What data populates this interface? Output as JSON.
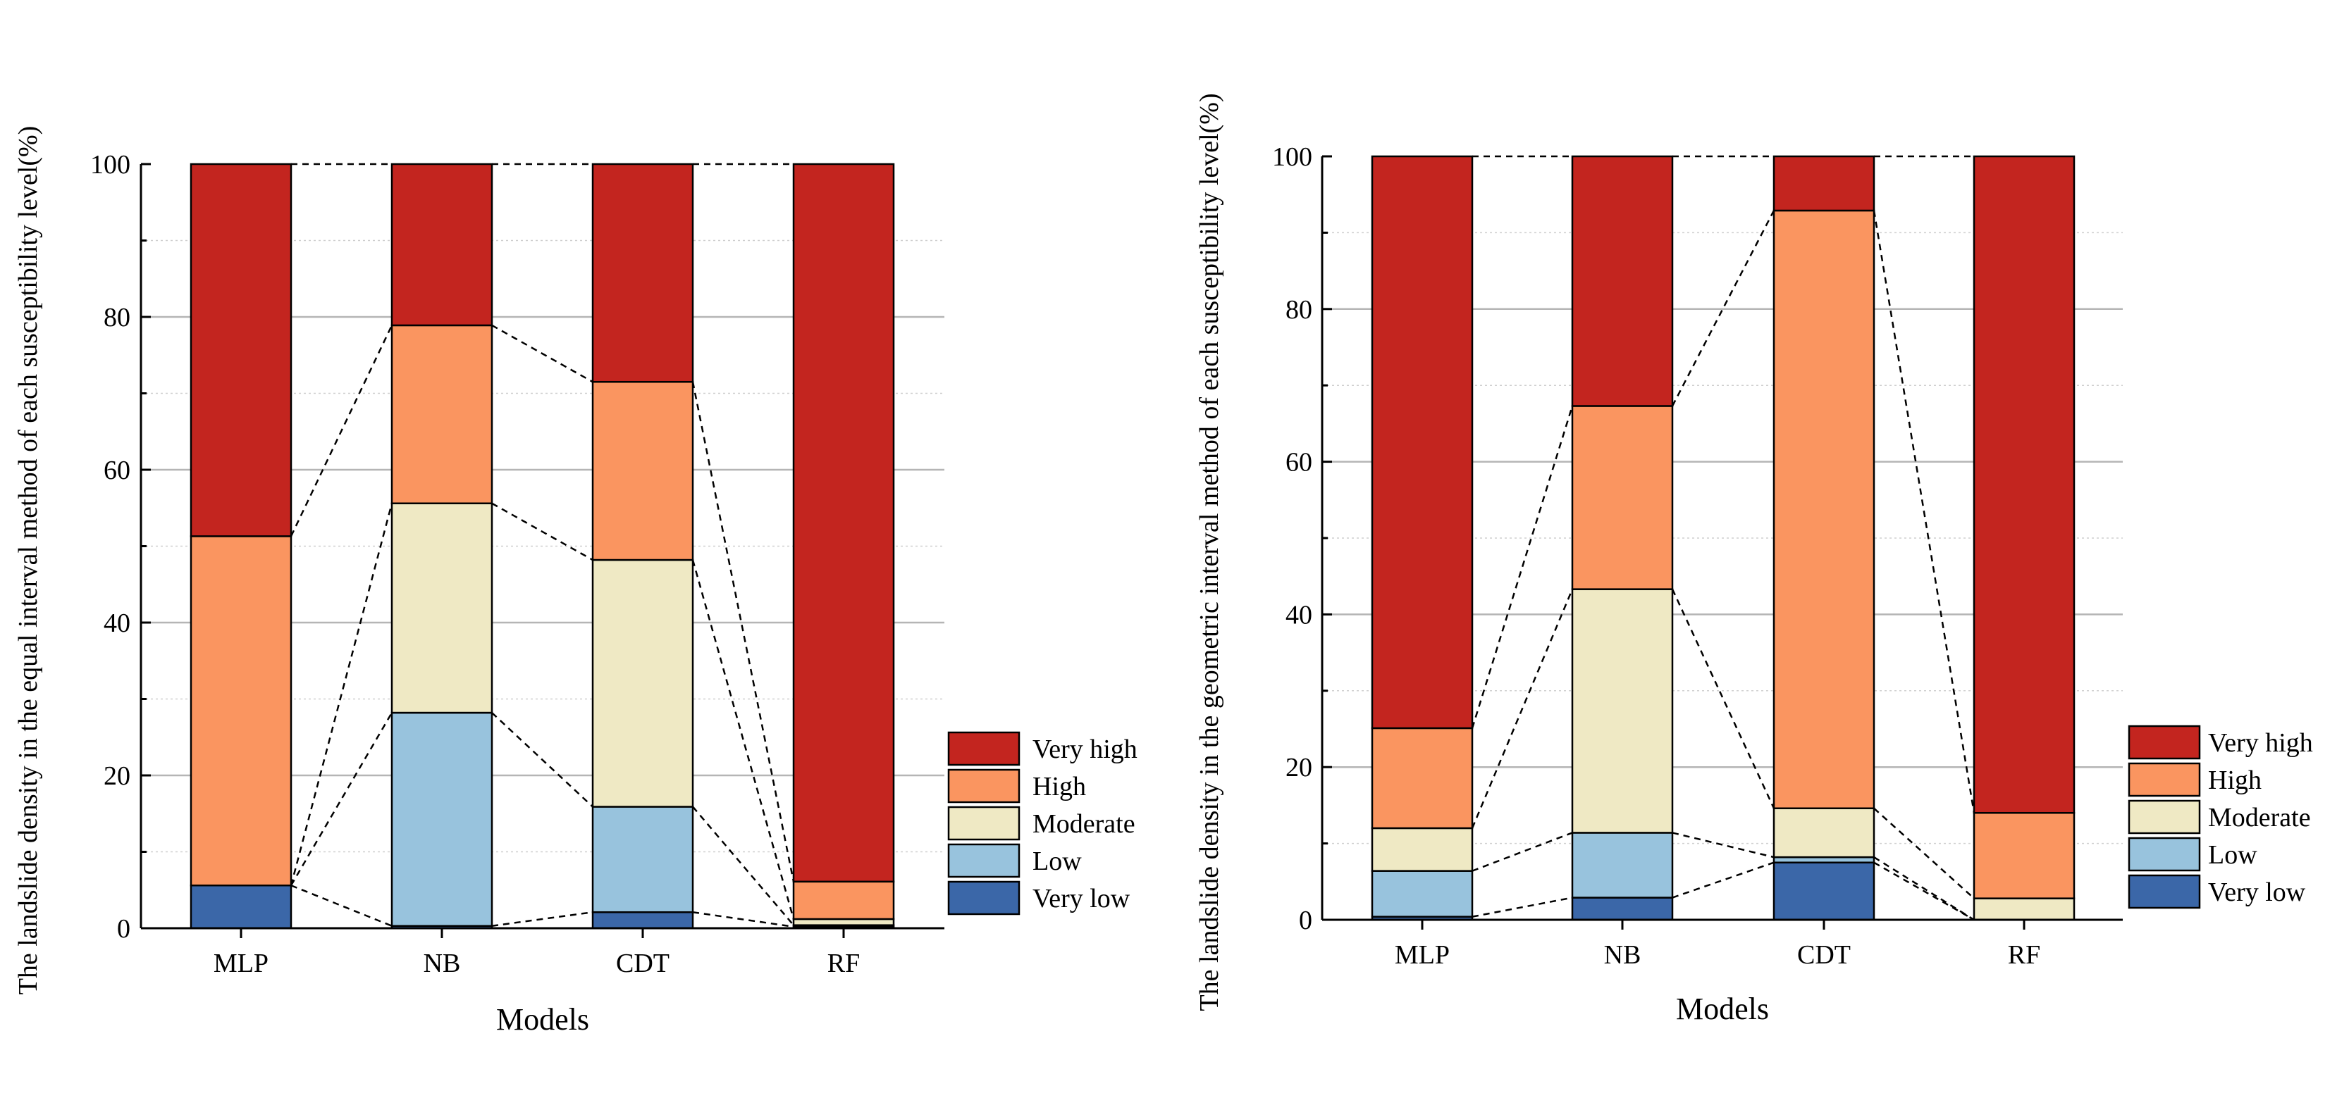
{
  "chart_data": [
    {
      "type": "bar",
      "stacked": true,
      "xlabel": "Models",
      "ylabel": "The landslide density in the equal interval method of each susceptibility level(%)",
      "categories": [
        "MLP",
        "NB",
        "CDT",
        "RF"
      ],
      "ylim": [
        0,
        100
      ],
      "yticks": [
        0,
        20,
        40,
        60,
        80,
        100
      ],
      "grid": true,
      "legend": "bottom-right",
      "series": [
        {
          "name": "Very low",
          "color": "#3B67A8",
          "values": [
            5.6,
            0.3,
            2.1,
            0.2
          ]
        },
        {
          "name": "Low",
          "color": "#98C3DD",
          "values": [
            0.0,
            27.9,
            13.8,
            0.2
          ]
        },
        {
          "name": "Moderate",
          "color": "#EFE9C4",
          "values": [
            0.0,
            27.4,
            32.3,
            0.8
          ]
        },
        {
          "name": "High",
          "color": "#FA9560",
          "values": [
            45.7,
            23.3,
            23.3,
            4.9
          ]
        },
        {
          "name": "Very high",
          "color": "#C3251F",
          "values": [
            48.7,
            21.1,
            28.5,
            93.9
          ]
        }
      ]
    },
    {
      "type": "bar",
      "stacked": true,
      "xlabel": "Models",
      "ylabel": "The landslide density in the geometric interval method of each susceptibility level(%)",
      "categories": [
        "MLP",
        "NB",
        "CDT",
        "RF"
      ],
      "ylim": [
        0,
        100
      ],
      "yticks": [
        0,
        20,
        40,
        60,
        80,
        100
      ],
      "grid": true,
      "legend": "bottom-right",
      "series": [
        {
          "name": "Very low",
          "color": "#3B67A8",
          "values": [
            0.4,
            2.9,
            7.5,
            0.0
          ]
        },
        {
          "name": "Low",
          "color": "#98C3DD",
          "values": [
            6.0,
            8.5,
            0.7,
            0.0
          ]
        },
        {
          "name": "Moderate",
          "color": "#EFE9C4",
          "values": [
            5.6,
            31.9,
            6.4,
            2.8
          ]
        },
        {
          "name": "High",
          "color": "#FA9560",
          "values": [
            13.1,
            24.0,
            78.3,
            11.2
          ]
        },
        {
          "name": "Very high",
          "color": "#C3251F",
          "values": [
            74.9,
            32.7,
            7.1,
            86.0
          ]
        }
      ]
    }
  ]
}
